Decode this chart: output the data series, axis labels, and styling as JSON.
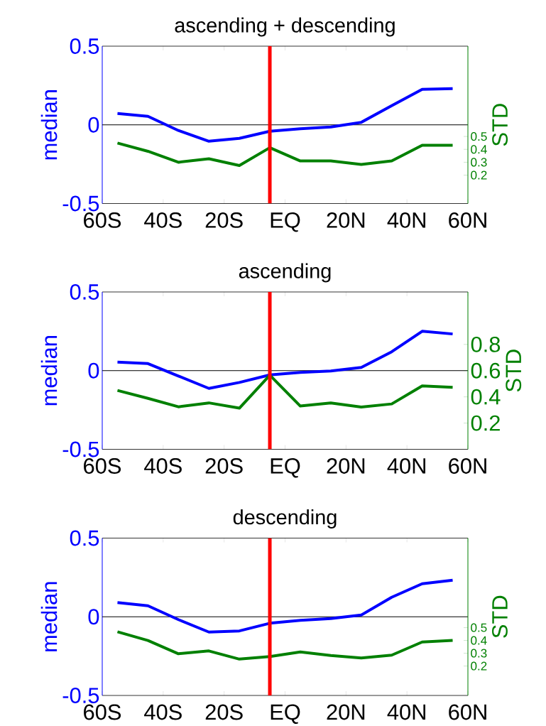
{
  "chart_data": [
    {
      "type": "line",
      "title": "ascending + descending",
      "ylabel": "median",
      "y2label": "STD",
      "x": [
        -55,
        -45,
        -35,
        -25,
        -15,
        -5,
        5,
        15,
        25,
        35,
        45,
        55
      ],
      "xlim": [
        -60,
        60
      ],
      "xticks": [
        {
          "value": -60,
          "label": "60S"
        },
        {
          "value": -40,
          "label": "40S"
        },
        {
          "value": -20,
          "label": "20S"
        },
        {
          "value": 0,
          "label": "EQ"
        },
        {
          "value": 20,
          "label": "20N"
        },
        {
          "value": 40,
          "label": "40N"
        },
        {
          "value": 60,
          "label": "60N"
        }
      ],
      "ylim": [
        -0.5,
        0.5
      ],
      "yticks": [
        -0.5,
        0,
        0.5
      ],
      "y2lim": [
        -0.02,
        1.2
      ],
      "y2ticks": [
        0.2,
        0.3,
        0.4,
        0.5
      ],
      "series": [
        {
          "color": "#0000ff",
          "values": [
            0.072,
            0.054,
            -0.036,
            -0.104,
            -0.086,
            -0.041,
            -0.025,
            -0.014,
            0.016,
            0.122,
            0.226,
            0.23
          ]
        },
        {
          "color": "#008000",
          "axis": "y2",
          "values": [
            0.449,
            0.385,
            0.3,
            0.327,
            0.275,
            0.413,
            0.31,
            0.31,
            0.283,
            0.31,
            0.432,
            0.432
          ]
        }
      ],
      "ref_lines": [
        {
          "axis": "y",
          "value": 0,
          "color": "#000000"
        },
        {
          "axis": "x",
          "value": -5,
          "color": "#ff0000"
        }
      ]
    },
    {
      "type": "line",
      "title": "ascending",
      "ylabel": "median",
      "y2label": "STD",
      "x": [
        -55,
        -45,
        -35,
        -25,
        -15,
        -5,
        5,
        15,
        25,
        35,
        45,
        55
      ],
      "xlim": [
        -60,
        60
      ],
      "xticks": [
        {
          "value": -60,
          "label": "60S"
        },
        {
          "value": -40,
          "label": "40S"
        },
        {
          "value": -20,
          "label": "20S"
        },
        {
          "value": 0,
          "label": "EQ"
        },
        {
          "value": 20,
          "label": "20N"
        },
        {
          "value": 40,
          "label": "40N"
        },
        {
          "value": 60,
          "label": "60N"
        }
      ],
      "ylim": [
        -0.5,
        0.5
      ],
      "yticks": [
        -0.5,
        0,
        0.5
      ],
      "y2lim": [
        0,
        1.2
      ],
      "y2ticks": [
        0.2,
        0.4,
        0.6,
        0.8
      ],
      "series": [
        {
          "color": "#0000ff",
          "values": [
            0.054,
            0.045,
            -0.034,
            -0.113,
            -0.075,
            -0.027,
            -0.011,
            -0.002,
            0.02,
            0.12,
            0.25,
            0.233
          ]
        },
        {
          "color": "#008000",
          "axis": "y2",
          "values": [
            0.449,
            0.389,
            0.324,
            0.354,
            0.314,
            0.565,
            0.33,
            0.354,
            0.322,
            0.346,
            0.484,
            0.473
          ]
        }
      ],
      "ref_lines": [
        {
          "axis": "y",
          "value": 0,
          "color": "#000000"
        },
        {
          "axis": "x",
          "value": -5,
          "color": "#ff0000"
        }
      ]
    },
    {
      "type": "line",
      "title": "descending",
      "ylabel": "median",
      "y2label": "STD",
      "x": [
        -55,
        -45,
        -35,
        -25,
        -15,
        -5,
        5,
        15,
        25,
        35,
        45,
        55
      ],
      "xlim": [
        -60,
        60
      ],
      "xticks": [
        {
          "value": -60,
          "label": "60S"
        },
        {
          "value": -40,
          "label": "40S"
        },
        {
          "value": -20,
          "label": "20S"
        },
        {
          "value": 0,
          "label": "EQ"
        },
        {
          "value": 20,
          "label": "20N"
        },
        {
          "value": 40,
          "label": "40N"
        },
        {
          "value": 60,
          "label": "60N"
        }
      ],
      "ylim": [
        -0.5,
        0.5
      ],
      "yticks": [
        -0.5,
        0,
        0.5
      ],
      "y2lim": [
        -0.03,
        1.2
      ],
      "y2ticks": [
        0.2,
        0.3,
        0.4,
        0.5
      ],
      "series": [
        {
          "color": "#0000ff",
          "values": [
            0.09,
            0.07,
            -0.018,
            -0.097,
            -0.09,
            -0.041,
            -0.023,
            -0.011,
            0.011,
            0.124,
            0.21,
            0.232
          ]
        },
        {
          "color": "#008000",
          "axis": "y2",
          "values": [
            0.468,
            0.4,
            0.296,
            0.318,
            0.254,
            0.274,
            0.31,
            0.282,
            0.263,
            0.285,
            0.388,
            0.4
          ]
        }
      ],
      "ref_lines": [
        {
          "axis": "y",
          "value": 0,
          "color": "#000000"
        },
        {
          "axis": "x",
          "value": -5,
          "color": "#ff0000"
        }
      ]
    }
  ]
}
